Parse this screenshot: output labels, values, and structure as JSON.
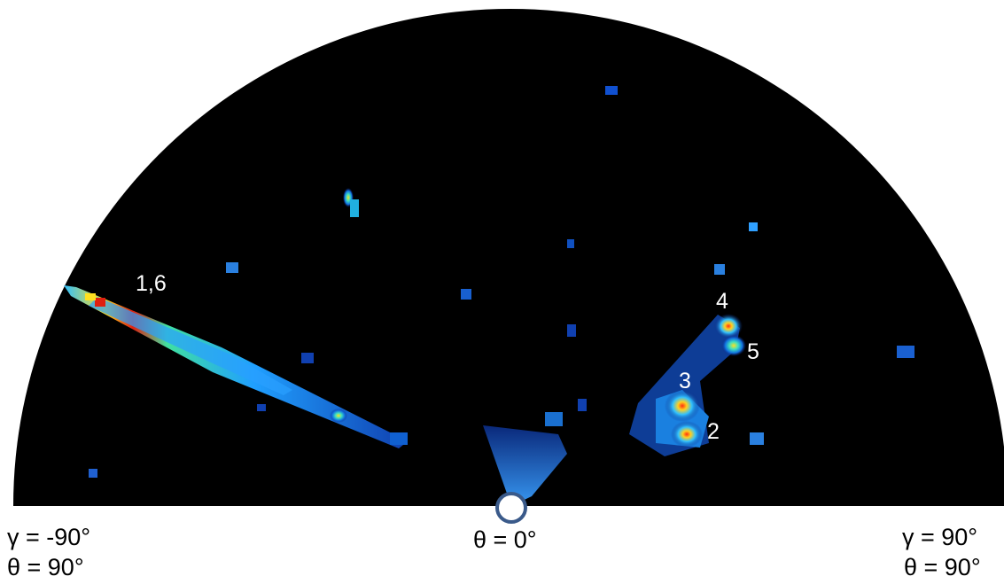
{
  "labels": {
    "left_gamma": "γ = -90°",
    "left_theta": "θ = 90°",
    "center_theta": "θ = 0°",
    "right_gamma": "γ = 90°",
    "right_theta": "θ = 90°"
  },
  "peaks": [
    {
      "id": "peak-1-6",
      "label": "1,6"
    },
    {
      "id": "peak-4",
      "label": "4"
    },
    {
      "id": "peak-5",
      "label": "5"
    },
    {
      "id": "peak-3",
      "label": "3"
    },
    {
      "id": "peak-2",
      "label": "2"
    }
  ],
  "colors": {
    "background": "#000000",
    "origin_marker_fill": "#ffffff",
    "origin_marker_stroke": "#3a5a8a",
    "heat_low": "#1040c0",
    "heat_mid": "#20d0ff",
    "heat_high": "#ffe020",
    "heat_peak": "#e02010"
  }
}
